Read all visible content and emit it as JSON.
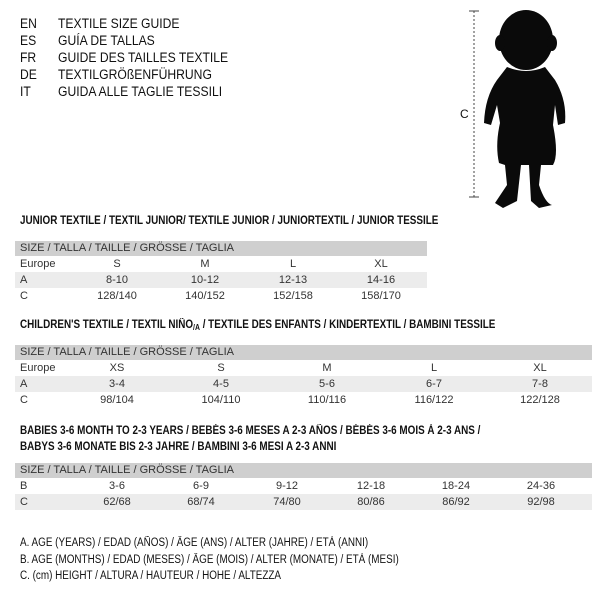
{
  "titles": [
    {
      "code": "EN",
      "text": "TEXTILE SIZE GUIDE"
    },
    {
      "code": "ES",
      "text": "GUÍA DE TALLAS"
    },
    {
      "code": "FR",
      "text": "GUIDE DES TAILLES TEXTILE"
    },
    {
      "code": "DE",
      "text": "TEXTILGRÖßENFÜHRUNG"
    },
    {
      "code": "IT",
      "text": "GUIDA ALLE TAGLIE TESSILI"
    }
  ],
  "figure": {
    "measure_label": "C"
  },
  "size_header": "SIZE / TALLA / TAILLE / GRÖSSE / TAGLIA",
  "junior": {
    "title": "JUNIOR TEXTILE / TEXTIL JUNIOR/ TEXTILE JUNIOR / JUNIORTEXTIL / JUNIOR TESSILE",
    "rows": [
      {
        "label": "Europe",
        "values": [
          "S",
          "M",
          "L",
          "XL"
        ]
      },
      {
        "label": "A",
        "values": [
          "8-10",
          "10-12",
          "12-13",
          "14-16"
        ]
      },
      {
        "label": "C",
        "values": [
          "128/140",
          "140/152",
          "152/158",
          "158/170"
        ]
      }
    ]
  },
  "children": {
    "title_a": "CHILDREN'S TEXTILE / TEXTIL NIÑO",
    "title_sub": "/A",
    "title_b": " / TEXTILE DES ENFANTS / KINDERTEXTIL / BAMBINI TESSILE",
    "rows": [
      {
        "label": "Europe",
        "values": [
          "XS",
          "S",
          "M",
          "L",
          "XL"
        ]
      },
      {
        "label": "A",
        "values": [
          "3-4",
          "4-5",
          "5-6",
          "6-7",
          "7-8"
        ]
      },
      {
        "label": "C",
        "values": [
          "98/104",
          "104/110",
          "110/116",
          "116/122",
          "122/128"
        ]
      }
    ]
  },
  "babies": {
    "title_line1": "BABIES 3-6 MONTH TO 2-3 YEARS / BEBÉS 3-6 MESES A 2-3 AÑOS / BÉBÉS 3-6 MOIS À 2-3 ANS /",
    "title_line2": "BABYS 3-6 MONATE BIS 2-3 JAHRE / BAMBINI 3-6 MESI A 2-3 ANNI",
    "rows": [
      {
        "label": "B",
        "values": [
          "3-6",
          "6-9",
          "9-12",
          "12-18",
          "18-24",
          "24-36"
        ]
      },
      {
        "label": "C",
        "values": [
          "62/68",
          "68/74",
          "74/80",
          "80/86",
          "86/92",
          "92/98"
        ]
      }
    ]
  },
  "legend": [
    "A. AGE (YEARS) / EDAD (AÑOS) / ÂGE (ANS) / ALTER (JAHRE) / ETÀ (ANNI)",
    "B. AGE (MONTHS) / EDAD (MESES) / ÂGE (MOIS) / ALTER (MONATE) / ETÀ (MESI)",
    "C. (cm) HEIGHT / ALTURA / HAUTEUR / HÖHE / ALTEZZA"
  ]
}
